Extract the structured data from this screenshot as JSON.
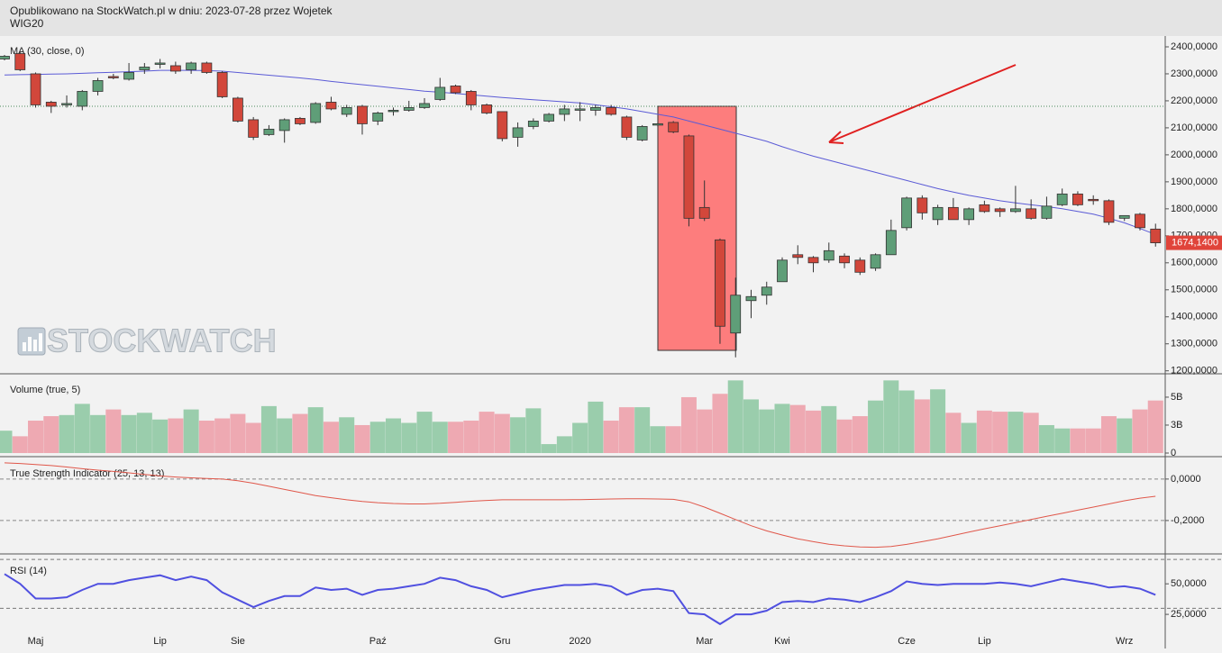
{
  "header": {
    "text": "Opublikowano na StockWatch.pl w dniu: 2023-07-28 przez Wojetek"
  },
  "chart_data": [
    {
      "type": "candlestick",
      "title": "WIG20",
      "watermark": "STOCKWATCH",
      "ylim": [
        1189000,
        2440000
      ],
      "yticks": [
        {
          "value": 1200000,
          "label": "1200,0000"
        },
        {
          "value": 1300000,
          "label": "1300,0000"
        },
        {
          "value": 1400000,
          "label": "1400,0000"
        },
        {
          "value": 1500000,
          "label": "1500,0000"
        },
        {
          "value": 1600000,
          "label": "1600,0000"
        },
        {
          "value": 1700000,
          "label": "1700,0000"
        },
        {
          "value": 1800000,
          "label": "1800,0000"
        },
        {
          "value": 1900000,
          "label": "1900,0000"
        },
        {
          "value": 2000000,
          "label": "2000,0000"
        },
        {
          "value": 2100000,
          "label": "2100,0000"
        },
        {
          "value": 2200000,
          "label": "2200,0000"
        },
        {
          "value": 2300000,
          "label": "2300,0000"
        },
        {
          "value": 2400000,
          "label": "2400,0000"
        }
      ],
      "xticks": [
        {
          "value": 2,
          "label": "Maj"
        },
        {
          "value": 10,
          "label": "Lip"
        },
        {
          "value": 15,
          "label": "Sie"
        },
        {
          "value": 24,
          "label": "Paź"
        },
        {
          "value": 32,
          "label": "Gru"
        },
        {
          "value": 37,
          "label": "2020"
        },
        {
          "value": 45,
          "label": "Mar"
        },
        {
          "value": 50,
          "label": "Kwi"
        },
        {
          "value": 58,
          "label": "Cze"
        },
        {
          "value": 63,
          "label": "Lip"
        },
        {
          "value": 72,
          "label": "Wrz"
        }
      ],
      "up_color": "#5f9e78",
      "down_color": "#d2473b",
      "hline": 2180000,
      "last_value": {
        "value": 1674140,
        "label": "1674,1400"
      },
      "open": [
        2355000,
        2375000,
        2300000,
        2195000,
        2185000,
        2180000,
        2235000,
        2290000,
        2280000,
        2315000,
        2335000,
        2330000,
        2315000,
        2340000,
        2305000,
        2210000,
        2130000,
        2075000,
        2090000,
        2135000,
        2120000,
        2195000,
        2150000,
        2180000,
        2125000,
        2160000,
        2165000,
        2175000,
        2205000,
        2255000,
        2235000,
        2185000,
        2160000,
        2065000,
        2105000,
        2125000,
        2150000,
        2165000,
        2165000,
        2175000,
        2140000,
        2055000,
        2110000,
        2120000,
        2070000,
        1805000,
        1685000,
        1340000,
        1460000,
        1480000,
        1530000,
        1630000,
        1620000,
        1610000,
        1625000,
        1610000,
        1580000,
        1630000,
        1730000,
        1840000,
        1760000,
        1805000,
        1760000,
        1815000,
        1800000,
        1790000,
        1800000,
        1765000,
        1815000,
        1855000,
        1835000,
        1830000,
        1765000,
        1780000,
        1725000
      ],
      "high": [
        2370000,
        2380000,
        2305000,
        2200000,
        2220000,
        2240000,
        2285000,
        2300000,
        2340000,
        2340000,
        2355000,
        2345000,
        2345000,
        2345000,
        2310000,
        2215000,
        2140000,
        2110000,
        2135000,
        2140000,
        2195000,
        2215000,
        2185000,
        2185000,
        2160000,
        2175000,
        2200000,
        2210000,
        2285000,
        2260000,
        2240000,
        2190000,
        2160000,
        2120000,
        2135000,
        2155000,
        2185000,
        2195000,
        2185000,
        2185000,
        2145000,
        2110000,
        2120000,
        2125000,
        2075000,
        1905000,
        1690000,
        1545000,
        1500000,
        1530000,
        1620000,
        1665000,
        1625000,
        1675000,
        1635000,
        1620000,
        1635000,
        1760000,
        1845000,
        1850000,
        1815000,
        1840000,
        1805000,
        1830000,
        1805000,
        1885000,
        1835000,
        1845000,
        1875000,
        1865000,
        1850000,
        1835000,
        1775000,
        1785000,
        1745000
      ],
      "low": [
        2350000,
        2310000,
        2175000,
        2155000,
        2175000,
        2165000,
        2220000,
        2280000,
        2275000,
        2300000,
        2320000,
        2300000,
        2300000,
        2300000,
        2210000,
        2120000,
        2055000,
        2070000,
        2045000,
        2110000,
        2115000,
        2165000,
        2140000,
        2075000,
        2110000,
        2145000,
        2160000,
        2170000,
        2200000,
        2225000,
        2165000,
        2150000,
        2050000,
        2030000,
        2095000,
        2120000,
        2125000,
        2125000,
        2145000,
        2145000,
        2055000,
        2050000,
        2105000,
        2080000,
        1735000,
        1755000,
        1300000,
        1250000,
        1395000,
        1445000,
        1530000,
        1595000,
        1565000,
        1600000,
        1580000,
        1555000,
        1570000,
        1630000,
        1720000,
        1760000,
        1740000,
        1760000,
        1740000,
        1785000,
        1770000,
        1785000,
        1760000,
        1760000,
        1810000,
        1810000,
        1815000,
        1740000,
        1755000,
        1720000,
        1660000
      ],
      "close": [
        2365000,
        2315000,
        2185000,
        2180000,
        2190000,
        2235000,
        2275000,
        2285000,
        2305000,
        2325000,
        2340000,
        2310000,
        2340000,
        2305000,
        2215000,
        2125000,
        2065000,
        2095000,
        2130000,
        2115000,
        2190000,
        2170000,
        2175000,
        2115000,
        2155000,
        2165000,
        2175000,
        2190000,
        2250000,
        2230000,
        2185000,
        2155000,
        2060000,
        2100000,
        2125000,
        2150000,
        2170000,
        2170000,
        2175000,
        2150000,
        2065000,
        2105000,
        2115000,
        2085000,
        1765000,
        1765000,
        1365000,
        1480000,
        1475000,
        1510000,
        1610000,
        1620000,
        1600000,
        1645000,
        1600000,
        1565000,
        1630000,
        1720000,
        1840000,
        1785000,
        1805000,
        1760000,
        1800000,
        1790000,
        1790000,
        1800000,
        1765000,
        1810000,
        1855000,
        1815000,
        1830000,
        1750000,
        1775000,
        1730000,
        1674140
      ],
      "ma": {
        "name": "MA (30, close, 0)",
        "color": "#5b5bd6",
        "values": [
          2296000,
          2297000,
          2298000,
          2299000,
          2300000,
          2302000,
          2304000,
          2306000,
          2308000,
          2310000,
          2313000,
          2313000,
          2313000,
          2312000,
          2310000,
          2305000,
          2300000,
          2295000,
          2290000,
          2285000,
          2279000,
          2272000,
          2266000,
          2260000,
          2254000,
          2248000,
          2242000,
          2236000,
          2232000,
          2227000,
          2222000,
          2217000,
          2212000,
          2208000,
          2204000,
          2200000,
          2196000,
          2192000,
          2185000,
          2178000,
          2170000,
          2160000,
          2150000,
          2140000,
          2125000,
          2110000,
          2095000,
          2080000,
          2065000,
          2050000,
          2030000,
          2012000,
          1995000,
          1980000,
          1965000,
          1950000,
          1935000,
          1920000,
          1905000,
          1890000,
          1875000,
          1862000,
          1850000,
          1840000,
          1830000,
          1822000,
          1815000,
          1808000,
          1800000,
          1790000,
          1780000,
          1765000,
          1748000,
          1727000,
          1705000
        ]
      }
    },
    {
      "type": "bar",
      "title": "Volume (true, 5)",
      "ylim": [
        0,
        6850000000
      ],
      "yticks": [
        0,
        {
          "value": 2500000000,
          "label": "3B"
        },
        {
          "value": 5000000000,
          "label": "5B"
        }
      ],
      "up_color": "rgba(95,180,125,0.6)",
      "down_color": "rgba(235,110,125,0.55)",
      "values": [
        2000000000,
        1500000000,
        2900000000,
        3300000000,
        3400000000,
        4400000000,
        3400000000,
        3900000000,
        3400000000,
        3600000000,
        3000000000,
        3100000000,
        3900000000,
        2900000000,
        3100000000,
        3500000000,
        2700000000,
        4200000000,
        3100000000,
        3500000000,
        4100000000,
        2800000000,
        3200000000,
        2500000000,
        2800000000,
        3100000000,
        2700000000,
        3700000000,
        2800000000,
        2800000000,
        2900000000,
        3700000000,
        3500000000,
        3200000000,
        4000000000,
        800000000,
        1500000000,
        2700000000,
        4600000000,
        2900000000,
        4100000000,
        4100000000,
        2400000000,
        2400000000,
        5000000000,
        3900000000,
        5300000000,
        6500000000,
        4800000000,
        3900000000,
        4400000000,
        4300000000,
        3800000000,
        4200000000,
        3000000000,
        3300000000,
        4700000000,
        6500000000,
        5600000000,
        4800000000,
        5700000000,
        3600000000,
        2700000000,
        3800000000,
        3700000000,
        3700000000,
        3600000000,
        2500000000,
        2200000000,
        2200000000,
        2200000000,
        3300000000,
        3100000000,
        3900000000,
        4700000000
      ]
    },
    {
      "type": "line",
      "title": "True Strength Indicator (25, 13, 13)",
      "color": "#e0574a",
      "grid": "dashed",
      "ylim": [
        -0.348,
        0.095
      ],
      "yticks": [
        {
          "value": 0,
          "label": "0,0000"
        },
        {
          "value": -0.2,
          "label": "-0,2000"
        }
      ],
      "values": [
        0.078,
        0.075,
        0.07,
        0.065,
        0.058,
        0.05,
        0.043,
        0.037,
        0.03,
        0.022,
        0.015,
        0.01,
        0.006,
        0.003,
        0,
        -0.008,
        -0.02,
        -0.035,
        -0.05,
        -0.065,
        -0.08,
        -0.09,
        -0.1,
        -0.108,
        -0.114,
        -0.118,
        -0.12,
        -0.12,
        -0.117,
        -0.112,
        -0.107,
        -0.103,
        -0.1,
        -0.1,
        -0.1,
        -0.1,
        -0.1,
        -0.099,
        -0.098,
        -0.096,
        -0.095,
        -0.095,
        -0.096,
        -0.098,
        -0.11,
        -0.135,
        -0.165,
        -0.195,
        -0.225,
        -0.25,
        -0.27,
        -0.288,
        -0.302,
        -0.314,
        -0.322,
        -0.327,
        -0.329,
        -0.325,
        -0.315,
        -0.302,
        -0.288,
        -0.272,
        -0.256,
        -0.24,
        -0.225,
        -0.21,
        -0.195,
        -0.18,
        -0.165,
        -0.15,
        -0.135,
        -0.12,
        -0.105,
        -0.092,
        -0.083
      ]
    },
    {
      "type": "line",
      "title": "RSI (14)",
      "color": "#5050e0",
      "ylim": [
        0,
        73
      ],
      "levels": [
        70,
        30
      ],
      "yticks": [
        {
          "value": 50,
          "label": "50,0000"
        },
        {
          "value": 25,
          "label": "25,0000"
        }
      ],
      "values": [
        58,
        50,
        38,
        38,
        39,
        45,
        50,
        50,
        53,
        55,
        57,
        53,
        56,
        53,
        43,
        37,
        31,
        36,
        40,
        40,
        47,
        45,
        46,
        41,
        45,
        46,
        48,
        50,
        55,
        53,
        48,
        45,
        39,
        42,
        45,
        47,
        49,
        49,
        50,
        48,
        41,
        45,
        46,
        44,
        26,
        25,
        17,
        25,
        25,
        28,
        35,
        36,
        35,
        38,
        37,
        35,
        39,
        44,
        52,
        50,
        49,
        50,
        50,
        50,
        51,
        50,
        48,
        51,
        54,
        52,
        50,
        47,
        48,
        46,
        41
      ]
    }
  ]
}
